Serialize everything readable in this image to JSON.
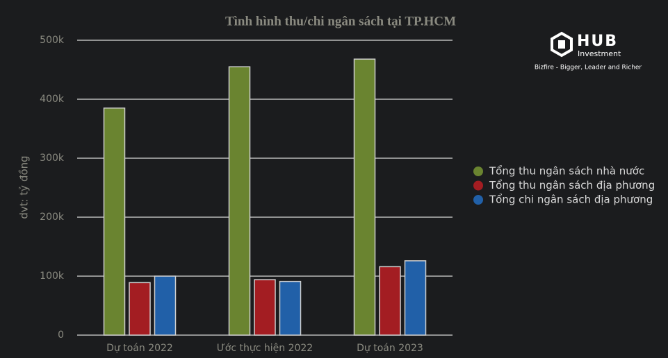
{
  "chart_data": {
    "type": "bar",
    "title": "Tình hình thu/chi ngân sách tại TP.HCM",
    "y_label": "dvt: tỷ đồng",
    "categories": [
      "Dự toán 2022",
      "Ước thực hiện 2022",
      "Dự toán 2023"
    ],
    "series": [
      {
        "name": "Tổng thu ngân sách nhà nước",
        "color": "#6a8430",
        "values": [
          385000,
          455000,
          468000
        ]
      },
      {
        "name": "Tổng thu ngân sách địa phương",
        "color": "#a31d22",
        "values": [
          89000,
          94000,
          116000
        ]
      },
      {
        "name": "Tổng chi ngân sách địa phương",
        "color": "#2160a8",
        "values": [
          100000,
          91000,
          126000
        ]
      }
    ],
    "ylim": [
      0,
      500000
    ],
    "yticks": [
      0,
      {
        "value": 100000,
        "label": "100k"
      },
      {
        "value": 200000,
        "label": "200k"
      },
      {
        "value": 300000,
        "label": "300k"
      },
      {
        "value": 400000,
        "label": "400k"
      },
      {
        "value": 500000,
        "label": "500k"
      }
    ],
    "grid": true,
    "legend": "right"
  },
  "logo": {
    "name": "HUB",
    "subtitle": "Investment",
    "tagline": "Bizfire - Bigger, Leader and Richer"
  }
}
